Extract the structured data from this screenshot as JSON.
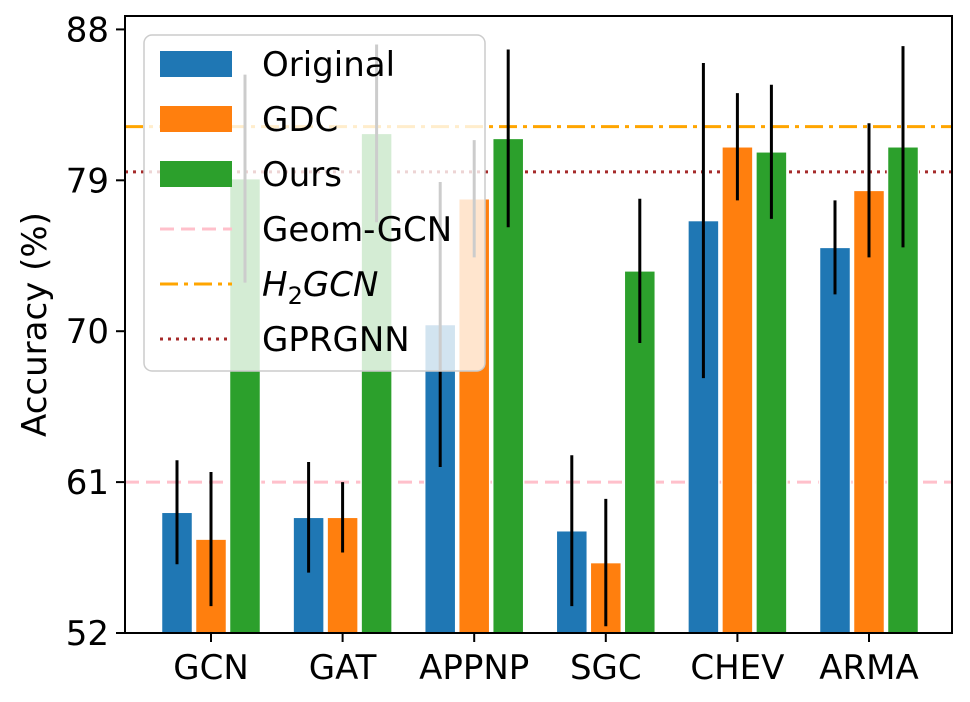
{
  "chart_data": {
    "type": "bar",
    "title": "",
    "xlabel": "",
    "ylabel": "Accuracy (%)",
    "ylim": [
      52,
      88.8
    ],
    "yticks": [
      52,
      61,
      70,
      79,
      88
    ],
    "categories": [
      "GCN",
      "GAT",
      "APPNP",
      "SGC",
      "CHEV",
      "ARMA"
    ],
    "series": [
      {
        "name": "Original",
        "color": "#1f77b4",
        "values": [
          59.2,
          58.9,
          70.4,
          58.1,
          76.6,
          75.0
        ],
        "errors": [
          3.1,
          3.3,
          8.5,
          4.5,
          9.4,
          2.8
        ]
      },
      {
        "name": "GDC",
        "color": "#ff7f0e",
        "values": [
          57.6,
          58.9,
          77.9,
          56.2,
          81.0,
          78.4
        ],
        "errors": [
          4.0,
          2.1,
          3.5,
          3.8,
          3.2,
          4.0
        ]
      },
      {
        "name": "Ours",
        "color": "#2ca02c",
        "values": [
          79.1,
          81.8,
          81.5,
          73.6,
          80.7,
          81.0
        ],
        "errors": [
          6.2,
          5.3,
          5.3,
          4.3,
          4.0,
          6.0
        ]
      }
    ],
    "reference_lines": [
      {
        "name": "Geom-GCN",
        "value": 61.0,
        "color": "#ffc0cb",
        "style": "dashed"
      },
      {
        "name": "H2GCN",
        "name_main": "H",
        "name_sub": "2",
        "name_rest": "GCN",
        "value": 82.2,
        "color": "#ffa500",
        "style": "dashdot"
      },
      {
        "name": "GPRGNN",
        "value": 79.5,
        "color": "#a52a2a",
        "style": "dotted"
      }
    ],
    "grid": false,
    "legend_position": "top-left"
  }
}
